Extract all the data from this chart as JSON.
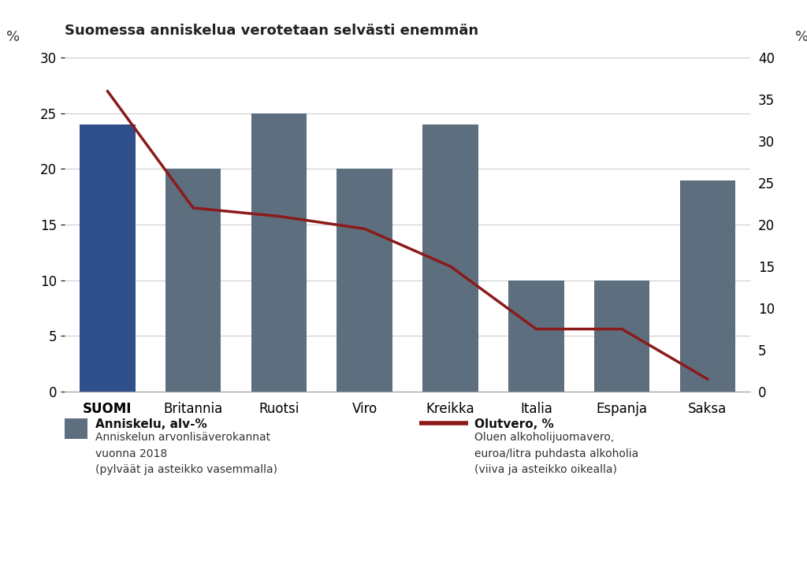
{
  "title": "Suomessa anniskelua verotetaan selvästi enemmän",
  "categories": [
    "SUOMI",
    "Britannia",
    "Ruotsi",
    "Viro",
    "Kreikka",
    "Italia",
    "Espanja",
    "Saksa"
  ],
  "bar_values": [
    24,
    20,
    25,
    20,
    24,
    10,
    10,
    19
  ],
  "line_values": [
    36,
    22,
    21,
    19.5,
    15,
    7.5,
    7.5,
    1.5
  ],
  "left_ylim": [
    0,
    30
  ],
  "right_ylim": [
    0,
    40
  ],
  "left_yticks": [
    0,
    5,
    10,
    15,
    20,
    25,
    30
  ],
  "right_yticks": [
    0,
    5,
    10,
    15,
    20,
    25,
    30,
    35,
    40
  ],
  "left_ylabel": "%",
  "right_ylabel": "%",
  "bar_color_suomi": "#2e4f8a",
  "bar_color_others": "#5d6e7e",
  "line_color": "#8b1a1a",
  "background_color": "#ffffff",
  "grid_color": "#cccccc",
  "legend_bar_label_bold": "Anniskelu, alv-%",
  "legend_bar_label_desc": "Anniskelun arvonlisäverokannat\nvuonna 2018\n(pylväät ja asteikko vasemmalla)",
  "legend_line_label_bold": "Olutvero, %",
  "legend_line_label_desc": "Oluen alkoholijuomavero,\neuroa/litra puhdasta alkoholia\n(viiva ja asteikko oikealla)"
}
